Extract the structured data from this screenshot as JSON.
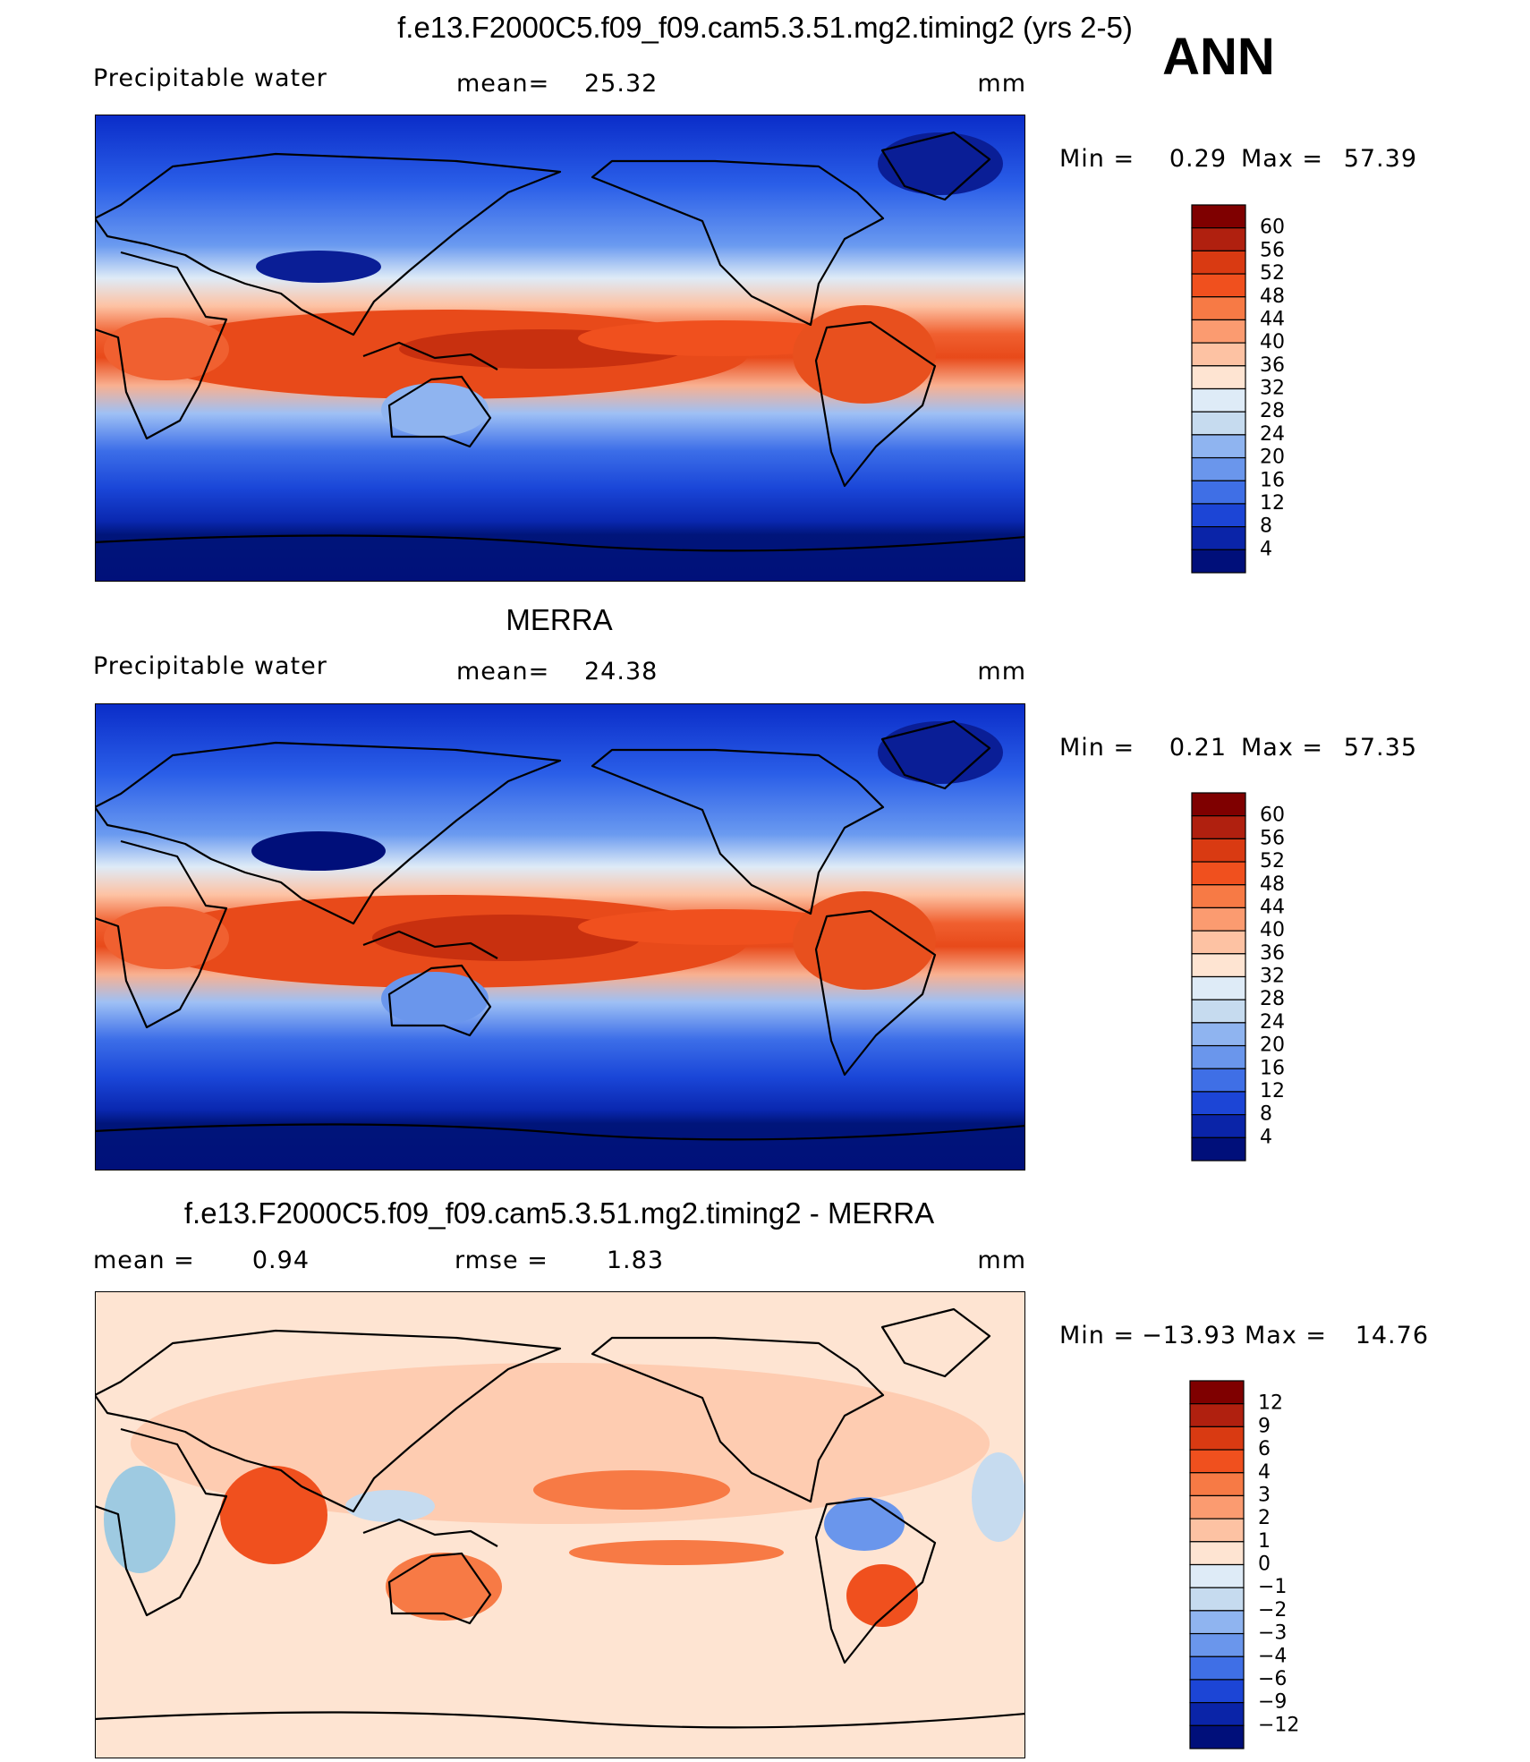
{
  "header": {
    "season": "ANN"
  },
  "panels": [
    {
      "title": "f.e13.F2000C5.f09_f09.cam5.3.51.mg2.timing2 (yrs 2-5)",
      "variable": "Precipitable water",
      "stat_label": "mean=",
      "stat_value": 25.32,
      "units": "mm",
      "min_label": "Min =",
      "min": 0.29,
      "max_label": "Max =",
      "max": 57.39,
      "colorbar": {
        "levels": [
          60,
          56,
          52,
          48,
          44,
          40,
          36,
          32,
          28,
          24,
          20,
          16,
          12,
          8,
          4
        ],
        "colors": [
          "#7f0000",
          "#b0200f",
          "#d93a12",
          "#f0501e",
          "#f77a45",
          "#fb9b70",
          "#fdc2a3",
          "#fee4d2",
          "#deebf7",
          "#c6dbef",
          "#8fb4f0",
          "#6a96ec",
          "#3f6fe6",
          "#1c45d6",
          "#0a24a8",
          "#000f7a"
        ]
      }
    },
    {
      "title": "MERRA",
      "variable": "Precipitable water",
      "stat_label": "mean=",
      "stat_value": 24.38,
      "units": "mm",
      "min_label": "Min =",
      "min": 0.21,
      "max_label": "Max =",
      "max": 57.35,
      "colorbar": {
        "levels": [
          60,
          56,
          52,
          48,
          44,
          40,
          36,
          32,
          28,
          24,
          20,
          16,
          12,
          8,
          4
        ],
        "colors": [
          "#7f0000",
          "#b0200f",
          "#d93a12",
          "#f0501e",
          "#f77a45",
          "#fb9b70",
          "#fdc2a3",
          "#fee4d2",
          "#deebf7",
          "#c6dbef",
          "#8fb4f0",
          "#6a96ec",
          "#3f6fe6",
          "#1c45d6",
          "#0a24a8",
          "#000f7a"
        ]
      }
    },
    {
      "title": "f.e13.F2000C5.f09_f09.cam5.3.51.mg2.timing2 - MERRA",
      "stat_label": "mean =",
      "stat_value": 0.94,
      "stat2_label": "rmse =",
      "stat2_value": 1.83,
      "units": "mm",
      "min_label": "Min =",
      "min": {
        "value": -13.93,
        "label": "−13.93"
      },
      "max_label": "Max =",
      "max": 14.76,
      "colorbar": {
        "levels": [
          12,
          9,
          6,
          4,
          3,
          2,
          1,
          0,
          {
            "value": -1,
            "label": "−1"
          },
          {
            "value": -2,
            "label": "−2"
          },
          {
            "value": -3,
            "label": "−3"
          },
          {
            "value": -4,
            "label": "−4"
          },
          {
            "value": -6,
            "label": "−6"
          },
          {
            "value": -9,
            "label": "−9"
          },
          {
            "value": -12,
            "label": "−12"
          }
        ],
        "colors": [
          "#7f0000",
          "#b0200f",
          "#d93a12",
          "#f0501e",
          "#f77a45",
          "#fb9b70",
          "#fdc2a3",
          "#fee4d2",
          "#deebf7",
          "#c6dbef",
          "#8fb4f0",
          "#6a96ec",
          "#3f6fe6",
          "#1c45d6",
          "#0a24a8",
          "#000f7a"
        ]
      }
    }
  ]
}
